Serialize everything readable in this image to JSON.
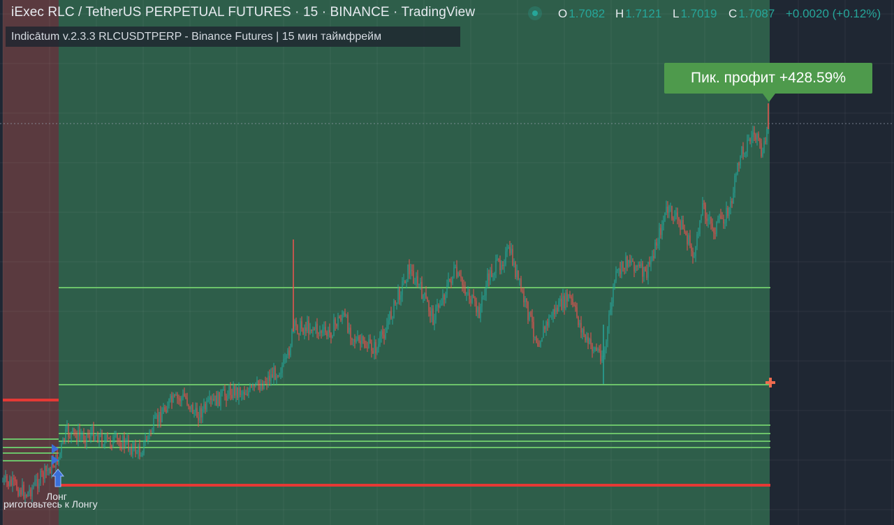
{
  "header": {
    "title": "iExec RLC / TetherUS PERPETUAL FUTURES · 15 · BINANCE · TradingView",
    "ohlc": [
      {
        "key": "O",
        "value": "1.7082"
      },
      {
        "key": "H",
        "value": "1.7121"
      },
      {
        "key": "L",
        "value": "1.7019"
      },
      {
        "key": "C",
        "value": "1.7087"
      }
    ],
    "change": "+0.0020 (+0.12%)"
  },
  "indicator": {
    "label": "Indicātum v.2.3.3 RLCUSDTPERP - Binance Futures | 15 мин таймфрейм"
  },
  "profit_tag": {
    "text": "Пик. профит +428.59%"
  },
  "signals": {
    "long_label": "Лонг",
    "prepare_label": "риготовьтесь к Лонгу"
  },
  "colors": {
    "background": "#1f2733",
    "long_zone": "#2e5e4a",
    "prepare_zone": "#5a3a3f",
    "level_line": "#6cc36a",
    "stop_line": "#e53935",
    "candle_up": "#26a69a",
    "candle_down": "#ef5350",
    "arrow": "#3a6fd8",
    "profit_tag": "#4e9a4c"
  },
  "icons": [
    "long-arrow-icon",
    "triangle-marker-icon",
    "crosshair-plus-icon"
  ]
}
